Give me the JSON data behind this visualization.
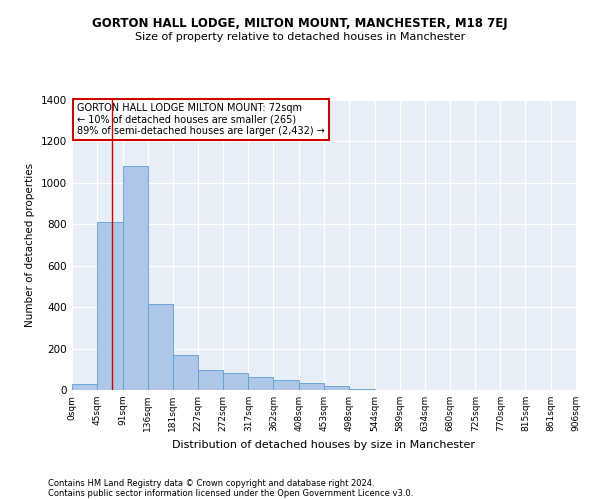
{
  "title": "GORTON HALL LODGE, MILTON MOUNT, MANCHESTER, M18 7EJ",
  "subtitle": "Size of property relative to detached houses in Manchester",
  "xlabel": "Distribution of detached houses by size in Manchester",
  "ylabel": "Number of detached properties",
  "bar_values": [
    30,
    810,
    1080,
    415,
    170,
    95,
    80,
    65,
    50,
    35,
    20,
    5,
    0,
    0,
    0,
    0,
    0,
    0,
    0,
    0
  ],
  "bin_edges": [
    0,
    45,
    91,
    136,
    181,
    227,
    272,
    317,
    362,
    408,
    453,
    498,
    544,
    589,
    634,
    680,
    725,
    770,
    815,
    861,
    906
  ],
  "tick_labels": [
    "0sqm",
    "45sqm",
    "91sqm",
    "136sqm",
    "181sqm",
    "227sqm",
    "272sqm",
    "317sqm",
    "362sqm",
    "408sqm",
    "453sqm",
    "498sqm",
    "544sqm",
    "589sqm",
    "634sqm",
    "680sqm",
    "725sqm",
    "770sqm",
    "815sqm",
    "861sqm",
    "906sqm"
  ],
  "bar_color": "#aec6e8",
  "bar_edge_color": "#5a9fd4",
  "vline_x": 72,
  "vline_color": "#cc0000",
  "ylim": [
    0,
    1400
  ],
  "yticks": [
    0,
    200,
    400,
    600,
    800,
    1000,
    1200,
    1400
  ],
  "annotation_title": "GORTON HALL LODGE MILTON MOUNT: 72sqm",
  "annotation_line1": "← 10% of detached houses are smaller (265)",
  "annotation_line2": "89% of semi-detached houses are larger (2,432) →",
  "annotation_box_color": "#ffffff",
  "annotation_box_edge_color": "#cc0000",
  "bg_color": "#e8eef7",
  "footer1": "Contains HM Land Registry data © Crown copyright and database right 2024.",
  "footer2": "Contains public sector information licensed under the Open Government Licence v3.0."
}
